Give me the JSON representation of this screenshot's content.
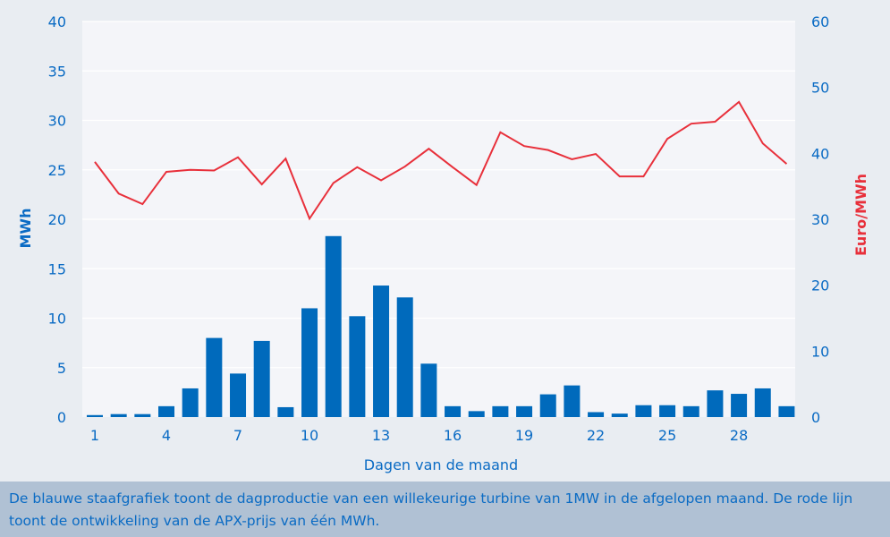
{
  "chart_data": {
    "type": "bar+line",
    "xlabel": "Dagen van de maand",
    "ylabel": "MWh",
    "y2label": "Euro/MWh",
    "ylim": [
      0,
      40
    ],
    "y2lim": [
      0,
      60
    ],
    "yticks": [
      0,
      5,
      10,
      15,
      20,
      25,
      30,
      35,
      40
    ],
    "y2ticks": [
      0,
      10,
      20,
      30,
      40,
      50,
      60
    ],
    "xticks": [
      1,
      4,
      7,
      10,
      13,
      16,
      19,
      22,
      25,
      28
    ],
    "grid": true,
    "x": [
      1,
      2,
      3,
      4,
      5,
      6,
      7,
      8,
      9,
      10,
      11,
      12,
      13,
      14,
      15,
      16,
      17,
      18,
      19,
      20,
      21,
      22,
      23,
      24,
      25,
      26,
      27,
      28,
      29,
      30
    ],
    "series": [
      {
        "name": "Dagproductie",
        "type": "bar",
        "axis": "left",
        "color": "#006abc",
        "values": [
          0.2,
          0.3,
          0.3,
          1.1,
          2.9,
          8.0,
          4.4,
          7.7,
          1.0,
          11.0,
          18.3,
          10.2,
          13.3,
          12.1,
          5.4,
          1.1,
          0.6,
          1.1,
          1.1,
          2.3,
          3.2,
          0.5,
          0.35,
          1.2,
          1.2,
          1.1,
          2.7,
          2.35,
          2.9,
          1.1
        ]
      },
      {
        "name": "APX-prijs",
        "type": "line",
        "axis": "right",
        "color": "#e8303b",
        "values": [
          38.7,
          33.9,
          32.3,
          37.2,
          37.5,
          37.4,
          39.4,
          35.3,
          39.2,
          30.1,
          35.5,
          37.9,
          35.9,
          38.0,
          40.7,
          37.9,
          35.2,
          43.2,
          41.1,
          40.5,
          39.1,
          39.9,
          36.5,
          36.5,
          42.2,
          44.5,
          44.8,
          47.8,
          41.5,
          38.4
        ]
      }
    ]
  },
  "colors": {
    "axis_text": "#0a6bc4",
    "y2label": "#e8303b",
    "plot_bg": "#f4f5f9",
    "page_bg": "#e9edf2"
  },
  "caption": "De blauwe staafgrafiek toont de dagproductie van een willekeurige turbine van 1MW in de afgelopen maand. De rode lijn toont de ontwikkeling van de APX-prijs van één MWh."
}
